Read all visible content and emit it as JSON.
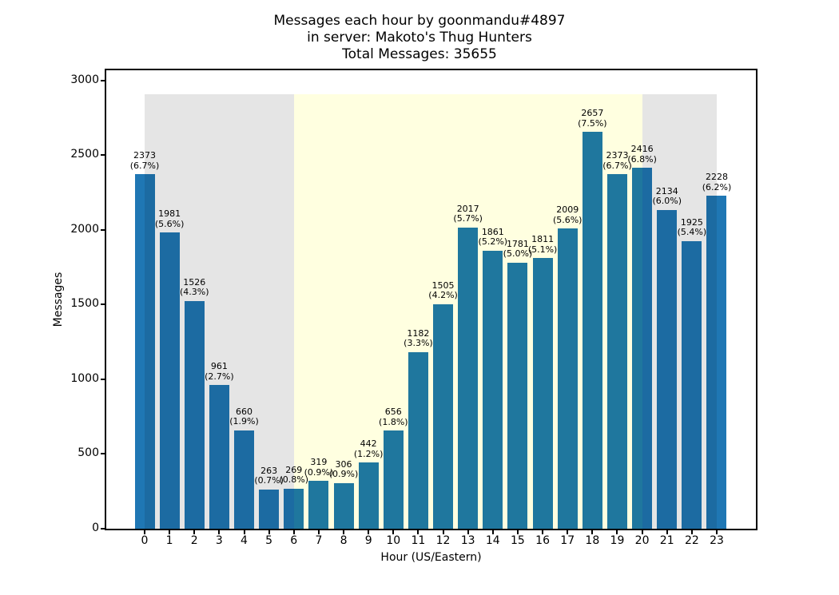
{
  "chart_data": {
    "type": "bar",
    "title_lines": [
      "Messages each hour by goonmandu#4897",
      "in server: Makoto's Thug Hunters",
      "Total Messages: 35655"
    ],
    "total_messages": 35655,
    "xlabel": "Hour (US/Eastern)",
    "ylabel": "Messages",
    "categories": [
      "0",
      "1",
      "2",
      "3",
      "4",
      "5",
      "6",
      "7",
      "8",
      "9",
      "10",
      "11",
      "12",
      "13",
      "14",
      "15",
      "16",
      "17",
      "18",
      "19",
      "20",
      "21",
      "22",
      "23"
    ],
    "values": [
      2373,
      1981,
      1526,
      961,
      660,
      263,
      269,
      319,
      306,
      442,
      656,
      1182,
      1505,
      2017,
      1861,
      1781,
      1811,
      2009,
      2657,
      2373,
      2416,
      2134,
      1925,
      2228
    ],
    "pct_labels": [
      "(6.7%)",
      "(5.6%)",
      "(4.3%)",
      "(2.7%)",
      "(1.9%)",
      "(0.7%)",
      "(0.8%)",
      "(0.9%)",
      "(0.9%)",
      "(1.2%)",
      "(1.8%)",
      "(3.3%)",
      "(4.2%)",
      "(5.7%)",
      "(5.2%)",
      "(5.0%)",
      "(5.1%)",
      "(5.6%)",
      "(7.5%)",
      "(6.7%)",
      "(6.8%)",
      "(6.0%)",
      "(5.4%)",
      "(6.2%)"
    ],
    "yticks": [
      0,
      500,
      1000,
      1500,
      2000,
      2500,
      3000
    ],
    "ylim": [
      0,
      3069
    ],
    "grid": false,
    "legend": "none",
    "bar_color": "#1f77b4",
    "bands": [
      {
        "start": 0,
        "end": 6,
        "color": "#e5e5e5",
        "name": "night-left"
      },
      {
        "start": 6,
        "end": 20,
        "color": "#ffffe0",
        "name": "day"
      },
      {
        "start": 20,
        "end": 23,
        "color": "#e5e5e5",
        "name": "night-right"
      }
    ],
    "band_top_value": 2909
  }
}
